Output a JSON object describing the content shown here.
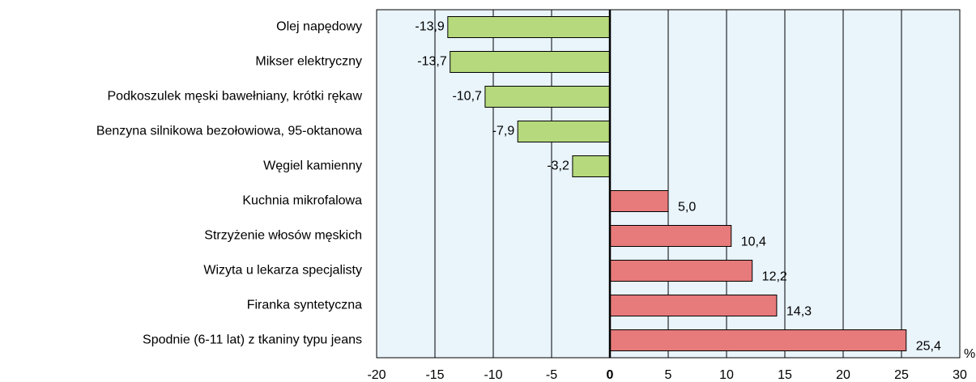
{
  "chart_data": {
    "type": "bar",
    "orientation": "horizontal",
    "categories": [
      "Olej napędowy",
      "Mikser elektryczny",
      "Podkoszulek męski bawełniany, krótki rękaw",
      "Benzyna silnikowa bezołowiowa, 95-oktanowa",
      "Węgiel kamienny",
      "Kuchnia mikrofalowa",
      "Strzyżenie włosów męskich",
      "Wizyta u lekarza specjalisty",
      "Firanka syntetyczna",
      "Spodnie (6-11 lat) z tkaniny typu jeans"
    ],
    "values": [
      -13.9,
      -13.7,
      -10.7,
      -7.9,
      -3.2,
      5.0,
      10.4,
      12.2,
      14.3,
      25.4
    ],
    "value_labels": [
      "-13,9",
      "-13,7",
      "-10,7",
      "-7,9",
      "-3,2",
      "5,0",
      "10,4",
      "12,2",
      "14,3",
      "25,4"
    ],
    "colors": [
      "#b5d97c",
      "#b5d97c",
      "#b5d97c",
      "#b5d97c",
      "#b5d97c",
      "#e77a7a",
      "#e77a7a",
      "#e77a7a",
      "#e77a7a",
      "#e77a7a"
    ],
    "xlim": [
      -20,
      30
    ],
    "xticks": [
      -20,
      -15,
      -10,
      -5,
      0,
      5,
      10,
      15,
      20,
      25,
      30
    ],
    "x_label": "%",
    "grid": true
  }
}
